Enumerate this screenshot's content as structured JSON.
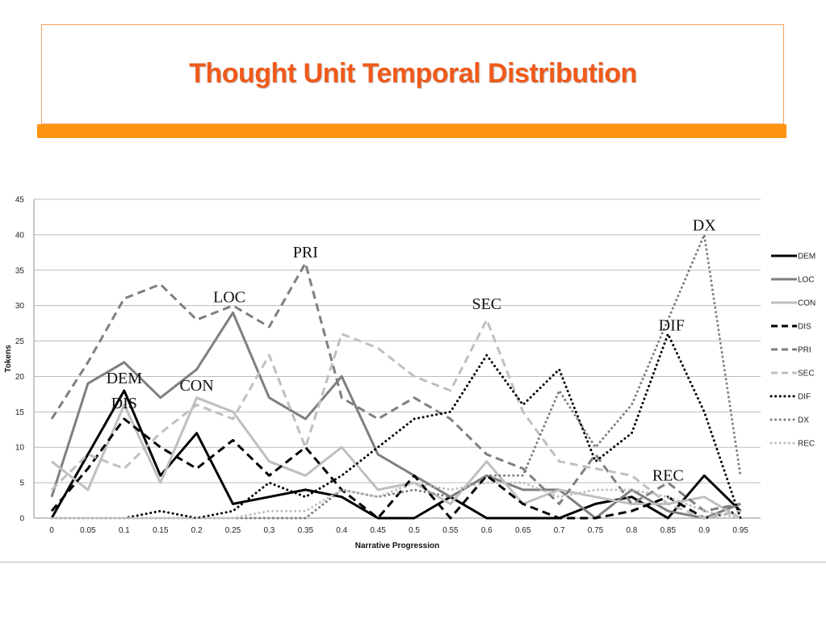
{
  "slide": {
    "title": "Thought Unit Temporal Distribution",
    "accent_color": "#ff9410",
    "title_color": "#f05a1a"
  },
  "chart_data": {
    "type": "line",
    "xlabel": "Narrative Progression",
    "ylabel": "Tokens",
    "x": [
      0,
      0.05,
      0.1,
      0.15,
      0.2,
      0.25,
      0.3,
      0.35,
      0.4,
      0.45,
      0.5,
      0.55,
      0.6,
      0.65,
      0.7,
      0.75,
      0.8,
      0.85,
      0.9,
      0.95
    ],
    "x_tick_labels": [
      "0",
      "0.05",
      "0.1",
      "0.15",
      "0.2",
      "0.25",
      "0.3",
      "0.35",
      "0.4",
      "0.45",
      "0.5",
      "0.55",
      "0.6",
      "0.65",
      "0.7",
      "0.75",
      "0.8",
      "0.85",
      "0.9",
      "0.95"
    ],
    "ylim": [
      0,
      45
    ],
    "y_ticks": [
      0,
      5,
      10,
      15,
      20,
      25,
      30,
      35,
      40,
      45
    ],
    "grid": "horizontal",
    "legend": "right",
    "series": [
      {
        "name": "DEM",
        "color": "#000000",
        "style": "solid",
        "values": [
          0,
          9,
          18,
          6,
          12,
          2,
          3,
          4,
          3,
          0,
          0,
          3,
          0,
          0,
          0,
          2,
          3,
          0,
          6,
          1
        ]
      },
      {
        "name": "LOC",
        "color": "#7f7f7f",
        "style": "solid",
        "values": [
          3,
          19,
          22,
          17,
          21,
          29,
          17,
          14,
          20,
          9,
          6,
          3,
          6,
          4,
          4,
          0,
          4,
          1,
          0,
          2
        ]
      },
      {
        "name": "CON",
        "color": "#bfbfbf",
        "style": "solid",
        "values": [
          8,
          4,
          16,
          5,
          17,
          15,
          8,
          6,
          10,
          4,
          5,
          2,
          8,
          2,
          4,
          3,
          2,
          2,
          3,
          0
        ]
      },
      {
        "name": "DIS",
        "color": "#000000",
        "style": "dash",
        "values": [
          1,
          7,
          14,
          10,
          7,
          11,
          6,
          10,
          4,
          0,
          6,
          0,
          6,
          2,
          0,
          0,
          1,
          3,
          0,
          1
        ]
      },
      {
        "name": "PRI",
        "color": "#7f7f7f",
        "style": "dash",
        "values": [
          14,
          22,
          31,
          33,
          28,
          30,
          27,
          36,
          17,
          14,
          17,
          14,
          9,
          7,
          2,
          9,
          2,
          5,
          1,
          2
        ]
      },
      {
        "name": "SEC",
        "color": "#bfbfbf",
        "style": "dash",
        "values": [
          4,
          9,
          7,
          12,
          16,
          14,
          23,
          10,
          26,
          24,
          20,
          18,
          28,
          15,
          8,
          7,
          6,
          2,
          0,
          1
        ]
      },
      {
        "name": "DIF",
        "color": "#000000",
        "style": "dot",
        "values": [
          0,
          0,
          0,
          1,
          0,
          1,
          5,
          3,
          6,
          10,
          14,
          15,
          23,
          16,
          21,
          8,
          12,
          26,
          15,
          0
        ]
      },
      {
        "name": "DX",
        "color": "#7f7f7f",
        "style": "dot",
        "values": [
          0,
          0,
          0,
          0,
          0,
          0,
          0,
          0,
          4,
          3,
          4,
          3,
          6,
          6,
          18,
          10,
          16,
          28,
          40,
          6
        ]
      },
      {
        "name": "REC",
        "color": "#bfbfbf",
        "style": "dot",
        "values": [
          0,
          0,
          0,
          0,
          0,
          0,
          1,
          1,
          4,
          3,
          5,
          4,
          5,
          5,
          3,
          4,
          4,
          3,
          1,
          0
        ]
      }
    ],
    "annotations": [
      {
        "text": "DEM",
        "x": 0.1,
        "y": 19.0
      },
      {
        "text": "DIS",
        "x": 0.1,
        "y": 15.5
      },
      {
        "text": "CON",
        "x": 0.2,
        "y": 18.0
      },
      {
        "text": "LOC",
        "x": 0.245,
        "y": 30.5
      },
      {
        "text": "PRI",
        "x": 0.35,
        "y": 36.8
      },
      {
        "text": "SEC",
        "x": 0.6,
        "y": 29.5
      },
      {
        "text": "DIF",
        "x": 0.855,
        "y": 26.5
      },
      {
        "text": "REC",
        "x": 0.85,
        "y": 5.3
      },
      {
        "text": "DX",
        "x": 0.9,
        "y": 40.6
      }
    ]
  }
}
